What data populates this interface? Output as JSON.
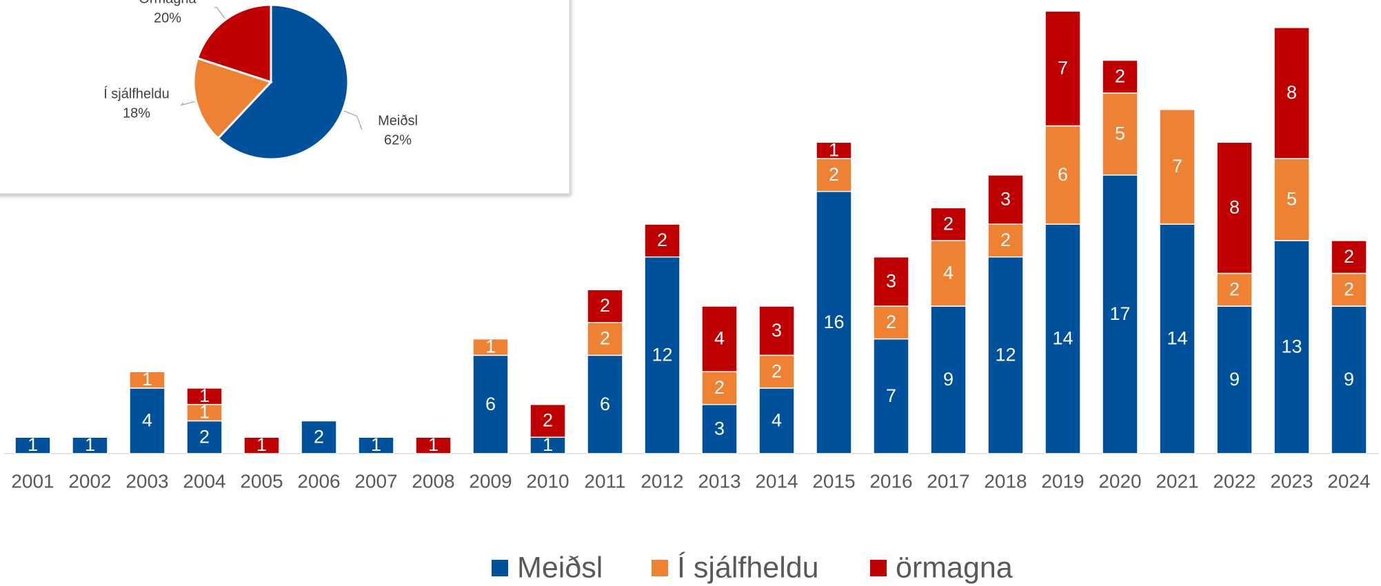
{
  "chart_data": [
    {
      "type": "bar",
      "categories": [
        "2001",
        "2002",
        "2003",
        "2004",
        "2005",
        "2006",
        "2007",
        "2008",
        "2009",
        "2010",
        "2011",
        "2012",
        "2013",
        "2014",
        "2015",
        "2016",
        "2017",
        "2018",
        "2019",
        "2020",
        "2021",
        "2022",
        "2023",
        "2024"
      ],
      "series": [
        {
          "name": "Meiðsl",
          "color": "#00519c",
          "values": [
            1,
            1,
            4,
            2,
            null,
            2,
            1,
            null,
            6,
            1,
            6,
            12,
            3,
            4,
            16,
            7,
            9,
            12,
            14,
            17,
            14,
            9,
            13,
            9
          ]
        },
        {
          "name": "Í sjálfheldu",
          "color": "#ef8133",
          "values": [
            null,
            null,
            1,
            1,
            null,
            null,
            null,
            null,
            1,
            null,
            2,
            null,
            2,
            2,
            2,
            2,
            4,
            2,
            6,
            5,
            7,
            2,
            5,
            2
          ]
        },
        {
          "name": "örmagna",
          "color": "#c00000",
          "values": [
            null,
            null,
            null,
            1,
            1,
            null,
            null,
            1,
            null,
            2,
            2,
            2,
            4,
            3,
            1,
            3,
            2,
            3,
            7,
            2,
            null,
            8,
            8,
            2
          ]
        }
      ],
      "ylim": [
        0,
        27.3
      ],
      "stacked": true,
      "legend": "bottom"
    },
    {
      "type": "pie",
      "categories": [
        "Meiðsl",
        "Í sjálfheldu",
        "Örmagna"
      ],
      "values": [
        62,
        18,
        20
      ],
      "value_labels": [
        "62%",
        "18%",
        "20%"
      ],
      "colors": [
        "#00519c",
        "#ef8133",
        "#c00000"
      ]
    }
  ]
}
